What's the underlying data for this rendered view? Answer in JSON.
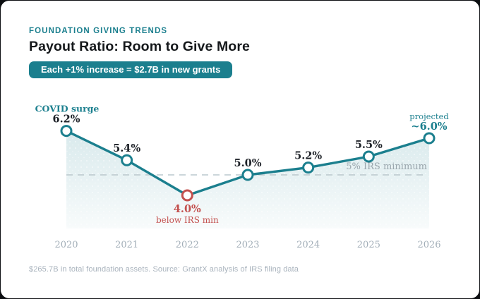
{
  "header": {
    "eyebrow": "FOUNDATION GIVING TRENDS",
    "title": "Payout Ratio: Room to Give More",
    "badge": "Each +1% increase = $2.7B in new grants"
  },
  "chart_data": {
    "type": "line",
    "x": [
      "2020",
      "2021",
      "2022",
      "2023",
      "2024",
      "2025",
      "2026"
    ],
    "values": [
      6.2,
      5.4,
      4.0,
      5.0,
      5.2,
      5.5,
      6.0
    ],
    "point_labels": [
      "6.2%",
      "5.4%",
      "4.0%",
      "5.0%",
      "5.2%",
      "5.5%",
      "~6.0%"
    ],
    "reference_line": {
      "value": 5.0,
      "label": "5% IRS minimum"
    },
    "annotations": {
      "first_point": "COVID surge",
      "low_point_sub": "below IRS min",
      "last_point": "projected"
    },
    "ylim": [
      3.4,
      7.0
    ],
    "grid": false,
    "legend": false,
    "colors": {
      "line": "#1b7f8e",
      "below_min": "#c3504e",
      "axis_text": "#a2aeb8",
      "reference_text": "#9aa6ad",
      "reference_dash": "#bcc8cd",
      "label_text": "#1d2127",
      "fill_top": "rgba(27,127,142,0.17)",
      "fill_bottom": "rgba(27,127,142,0.03)"
    }
  },
  "footer": {
    "text": "$265.7B in total foundation assets. Source: GrantX analysis of IRS filing data"
  }
}
